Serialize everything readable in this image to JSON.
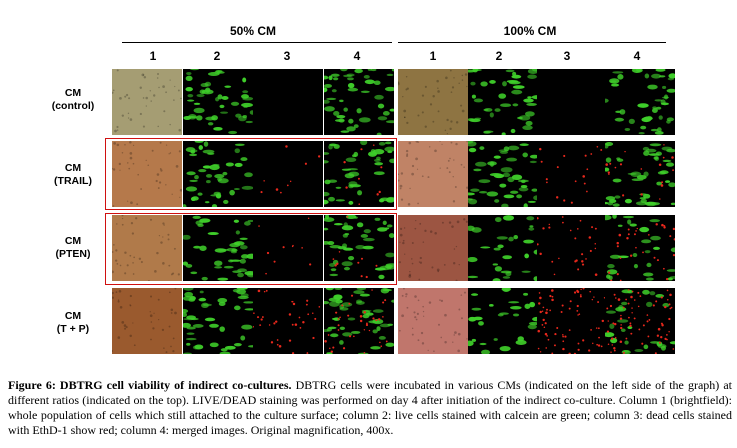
{
  "figure": {
    "groups": [
      {
        "title": "50% CM",
        "columns": [
          "1",
          "2",
          "3",
          "4"
        ]
      },
      {
        "title": "100% CM",
        "columns": [
          "1",
          "2",
          "3",
          "4"
        ]
      }
    ],
    "rows": [
      {
        "label_line1": "CM",
        "label_line2": "(control)",
        "highlighted": false,
        "bf_50": "#a59d73",
        "bf_100": "#8e7442",
        "red_50": 0,
        "red_100": 0,
        "green_50": 0.75,
        "green_100": 0.7
      },
      {
        "label_line1": "CM",
        "label_line2": "(TRAIL)",
        "highlighted": true,
        "bf_50": "#b5794b",
        "bf_100": "#c08366",
        "red_50": 9,
        "red_100": 18,
        "green_50": 0.7,
        "green_100": 0.75
      },
      {
        "label_line1": "CM",
        "label_line2": "(PTEN)",
        "highlighted": true,
        "bf_50": "#b07a4a",
        "bf_100": "#9c5542",
        "red_50": 10,
        "red_100": 30,
        "green_50": 0.7,
        "green_100": 0.45
      },
      {
        "label_line1": "CM",
        "label_line2": "(T + P)",
        "highlighted": false,
        "bf_50": "#9a5a2e",
        "bf_100": "#c0766c",
        "red_50": 35,
        "red_100": 70,
        "green_50": 0.75,
        "green_100": 0.45
      }
    ],
    "colors": {
      "highlight_box": "#d01010",
      "live_stain": "#3fcf2a",
      "dead_stain": "#e8281c",
      "background": "#000000"
    }
  },
  "caption": {
    "label": "Figure 6: DBTRG cell viability of indirect co-cultures.",
    "text": " DBTRG cells were incubated in various CMs (indicated on the left side of the graph) at different ratios (indicated on the top). LIVE/DEAD staining was performed on day 4 after initiation of the indirect co-culture. Column 1 (brightfield): whole population of cells which still attached to the culture surface; column 2: live cells stained with calcein are green; column 3: dead cells stained with EthD-1 show red; column 4: merged images. Original magnification, 400x."
  }
}
